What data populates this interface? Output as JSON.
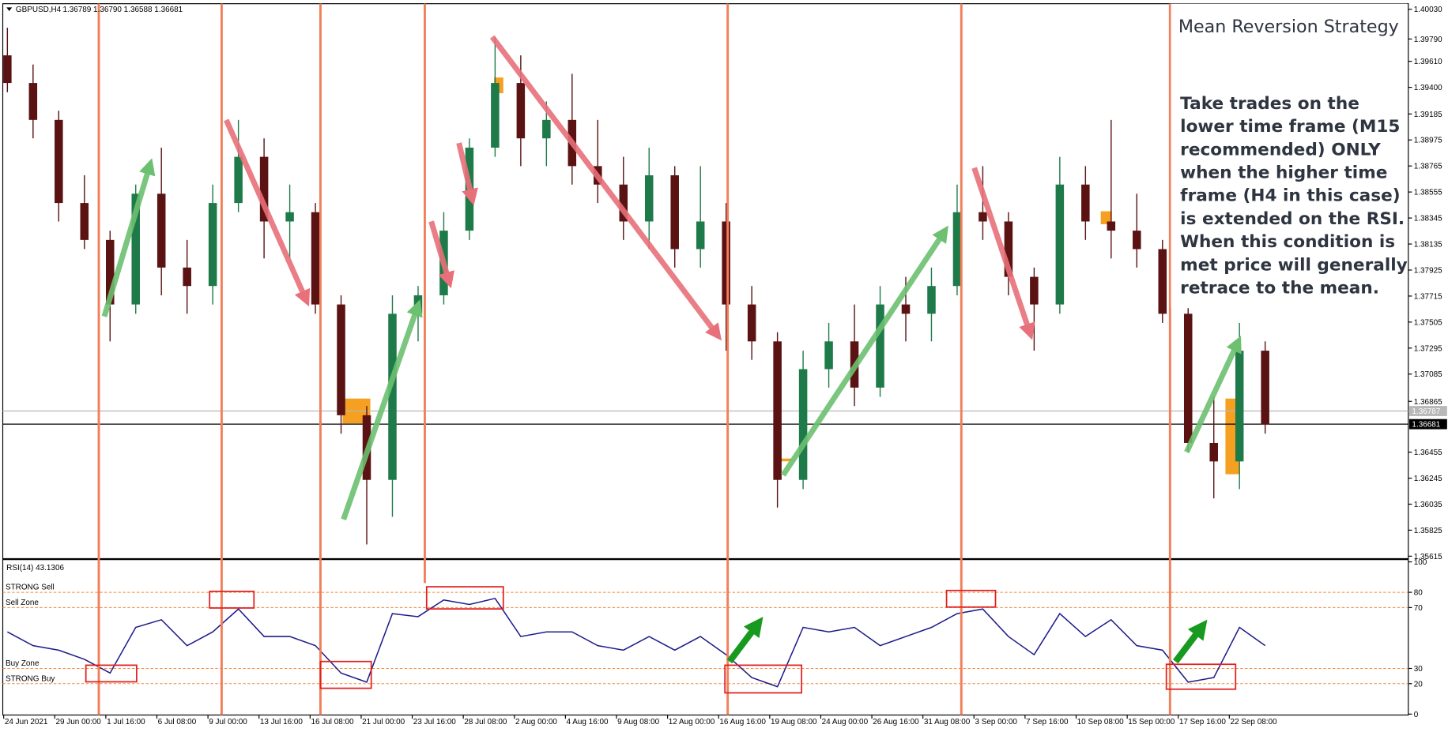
{
  "chart_data": [
    {
      "type": "candlestick",
      "title": "GBPUSD,H4",
      "ohlc_text": "1.36789 1.36790 1.36588 1.36681",
      "up_color": "#1f7a4a",
      "down_color": "#5a1212",
      "open": [
        1.39658,
        1.39435,
        1.39137,
        1.38466,
        1.38168,
        1.37647,
        1.38541,
        1.37945,
        1.37796,
        1.38466,
        1.38839,
        1.38317,
        1.38392,
        1.37647,
        1.36753,
        1.36231,
        1.37572,
        1.37721,
        1.38243,
        1.38913,
        1.39435,
        1.38988,
        1.39137,
        1.38764,
        1.38615,
        1.38317,
        1.3869,
        1.38094,
        1.38317,
        1.37647,
        1.37349,
        1.36231,
        1.37125,
        1.37349,
        1.36976,
        1.37647,
        1.37572,
        1.37796,
        1.38392,
        1.38317,
        1.3787,
        1.37647,
        1.38615,
        1.38317,
        1.38243,
        1.38094,
        1.37572,
        1.36529,
        1.3638,
        1.37274
      ],
      "high": [
        1.39881,
        1.39584,
        1.39211,
        1.3869,
        1.38243,
        1.38615,
        1.38913,
        1.38168,
        1.38615,
        1.39137,
        1.38988,
        1.38615,
        1.38466,
        1.37721,
        1.36827,
        1.37721,
        1.37796,
        1.38392,
        1.38988,
        1.39807,
        1.39658,
        1.39286,
        1.39509,
        1.39137,
        1.38839,
        1.38913,
        1.38764,
        1.38764,
        1.38466,
        1.37796,
        1.37423,
        1.37274,
        1.37498,
        1.37647,
        1.37796,
        1.3787,
        1.37945,
        1.38615,
        1.38764,
        1.38392,
        1.37945,
        1.38839,
        1.38764,
        1.39137,
        1.38541,
        1.38168,
        1.37647,
        1.36902,
        1.37498,
        1.37349
      ],
      "low": [
        1.3936,
        1.38988,
        1.38317,
        1.38094,
        1.37349,
        1.37572,
        1.37721,
        1.37572,
        1.37647,
        1.38392,
        1.38019,
        1.38019,
        1.37572,
        1.36604,
        1.3571,
        1.35933,
        1.37349,
        1.37647,
        1.38168,
        1.38839,
        1.38764,
        1.38764,
        1.38615,
        1.38466,
        1.38168,
        1.38094,
        1.37945,
        1.37945,
        1.37274,
        1.372,
        1.36008,
        1.36157,
        1.36976,
        1.36827,
        1.36902,
        1.37349,
        1.37349,
        1.37721,
        1.38168,
        1.37721,
        1.37274,
        1.37572,
        1.38168,
        1.38019,
        1.37945,
        1.37498,
        1.36455,
        1.36082,
        1.36157,
        1.36604
      ],
      "close": [
        1.39435,
        1.39137,
        1.38466,
        1.38168,
        1.37647,
        1.38541,
        1.37945,
        1.37796,
        1.38466,
        1.38839,
        1.38317,
        1.38392,
        1.37647,
        1.36753,
        1.36231,
        1.37572,
        1.37721,
        1.38243,
        1.38913,
        1.39435,
        1.38988,
        1.39137,
        1.38764,
        1.38615,
        1.38317,
        1.3869,
        1.38094,
        1.38317,
        1.37647,
        1.37349,
        1.36231,
        1.37125,
        1.37349,
        1.36976,
        1.37647,
        1.37572,
        1.37796,
        1.38392,
        1.38317,
        1.3787,
        1.37647,
        1.38615,
        1.38317,
        1.38243,
        1.38094,
        1.37572,
        1.36529,
        1.3638,
        1.37274,
        1.36678
      ],
      "ylim": [
        1.35599,
        1.40075
      ],
      "yticks": [
        {
          "value": 1.4003,
          "label": "1.40030"
        },
        {
          "value": 1.3979,
          "label": "1.39790"
        },
        {
          "value": 1.3961,
          "label": "1.39610"
        },
        {
          "value": 1.394,
          "label": "1.39400"
        },
        1.39185,
        1.38975,
        1.38765,
        1.38555,
        1.38345,
        1.38135,
        1.37925,
        1.37715,
        1.37505,
        1.37295,
        1.37085,
        1.36865,
        1.36455,
        1.36245,
        1.36035,
        1.35825,
        1.35615
      ],
      "price_labels": [
        1.36787,
        1.36681
      ],
      "x_labels": [
        "24 Jun 2021",
        "29 Jun 00:00",
        "1 Jul 16:00",
        "6 Jul 08:00",
        "9 Jul 00:00",
        "13 Jul 16:00",
        "16 Jul 08:00",
        "21 Jul 00:00",
        "23 Jul 16:00",
        "28 Jul 08:00",
        "2 Aug 00:00",
        "4 Aug 16:00",
        "9 Aug 08:00",
        "12 Aug 00:00",
        "16 Aug 16:00",
        "19 Aug 08:00",
        "24 Aug 00:00",
        "26 Aug 16:00",
        "31 Aug 08:00",
        "3 Sep 00:00",
        "7 Sep 16:00",
        "10 Sep 08:00",
        "15 Sep 00:00",
        "17 Sep 16:00",
        "22 Sep 08:00"
      ],
      "annotation": {
        "title": "Mean Reversion Strategy",
        "lines": [
          "Take trades on the",
          "lower time frame (M15",
          "recommended) ONLY",
          "when the higher time",
          "frame (H4 in this case)",
          "is extended on the RSI.",
          "When this condition is",
          "met price will generally",
          "retrace to the mean."
        ]
      }
    },
    {
      "type": "line",
      "title": "RSI(14) 43.1306",
      "color": "#1c1c8a",
      "values": [
        54,
        45,
        42,
        36,
        27,
        57,
        62,
        45,
        54,
        69,
        51,
        51,
        45,
        27,
        21,
        66,
        64,
        75,
        72,
        76,
        51,
        54,
        54,
        45,
        42,
        51,
        42,
        51,
        39,
        24,
        18,
        57,
        54,
        57,
        45,
        51,
        57,
        66,
        69,
        51,
        39,
        66,
        51,
        62,
        45,
        42,
        21,
        24,
        57,
        45
      ],
      "ylim": [
        0,
        100
      ],
      "yticks": [
        100,
        80,
        70,
        30,
        20,
        0
      ],
      "levels": [
        80,
        70,
        30,
        20
      ],
      "level_labels": [
        "STRONG Sell",
        "Sell Zone",
        "Buy Zone",
        "STRONG Buy"
      ]
    }
  ]
}
